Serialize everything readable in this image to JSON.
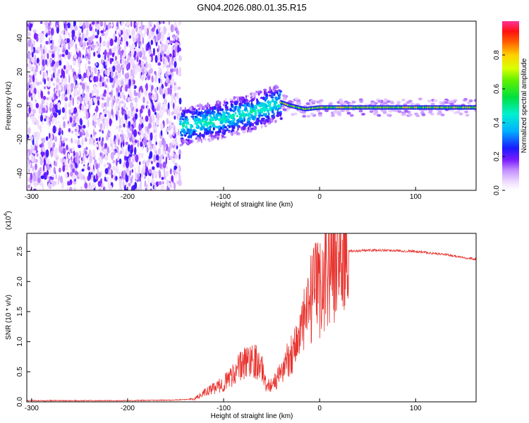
{
  "title": "GN04.2026.080.01.35.R15",
  "chart_data": [
    {
      "type": "heatmap",
      "xlabel": "Height of straight line (km)",
      "ylabel": "Frequency (Hz)",
      "xlim": [
        -305,
        163
      ],
      "ylim": [
        -50,
        50
      ],
      "xticks": [
        -300,
        -200,
        -100,
        0,
        100
      ],
      "yticks": [
        -40,
        -20,
        0,
        20,
        40
      ],
      "colorbar": {
        "label": "Normalized spectral amplitude",
        "range": [
          0,
          1
        ],
        "ticks": [
          "0.0",
          "0.2",
          "0.4",
          "0.6",
          "0.8"
        ]
      },
      "regions": [
        {
          "x_from": -305,
          "x_to": -145,
          "pattern": "broadband noise",
          "amplitude": 0.2
        },
        {
          "x_from": -145,
          "x_to": -40,
          "pattern": "scattered signal near -10..5 Hz",
          "amplitude": 0.4
        },
        {
          "x_from": -40,
          "x_to": 163,
          "pattern": "narrow line near 0 Hz",
          "amplitude": 0.6
        }
      ],
      "trend_points": [
        {
          "x": -140,
          "y": -12
        },
        {
          "x": -100,
          "y": -8
        },
        {
          "x": -60,
          "y": -2
        },
        {
          "x": -40,
          "y": 2
        },
        {
          "x": -30,
          "y": 0
        },
        {
          "x": -15,
          "y": -2
        },
        {
          "x": 0,
          "y": -1
        },
        {
          "x": 50,
          "y": -1
        },
        {
          "x": 100,
          "y": -1
        },
        {
          "x": 163,
          "y": -1
        }
      ]
    },
    {
      "type": "line",
      "xlabel": "Height of straight line (km)",
      "ylabel": "SNR (10 * v/v)",
      "multiplier_label": "(x10",
      "multiplier_exp": "4",
      "multiplier_close": ")",
      "xlim": [
        -305,
        163
      ],
      "ylim": [
        0,
        2.8
      ],
      "xticks": [
        -300,
        -200,
        -100,
        0,
        100
      ],
      "yticks": [
        "0.0",
        "0.5",
        "1.0",
        "1.5",
        "2.0",
        "2.5"
      ],
      "color": "#e8332e",
      "series": [
        {
          "x": [
            -305,
            -250,
            -200,
            -150,
            -130,
            -120,
            -100,
            -85,
            -70,
            -60,
            -55,
            -45,
            -35,
            -25,
            -15,
            -8,
            0,
            5,
            10,
            20,
            30,
            50,
            70,
            100,
            130,
            163
          ],
          "y": [
            0.02,
            0.02,
            0.02,
            0.03,
            0.05,
            0.15,
            0.3,
            0.55,
            0.75,
            0.55,
            0.25,
            0.35,
            0.65,
            0.95,
            1.35,
            1.75,
            1.9,
            2.1,
            2.3,
            2.45,
            2.5,
            2.52,
            2.52,
            2.5,
            2.45,
            2.37
          ]
        }
      ]
    }
  ]
}
